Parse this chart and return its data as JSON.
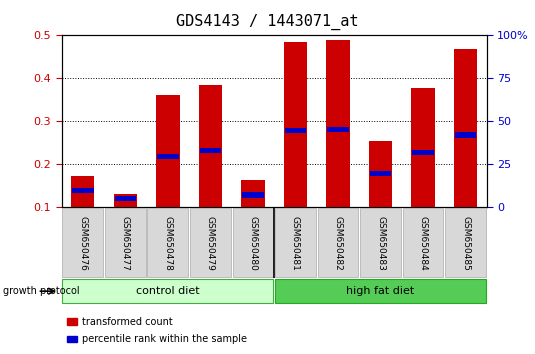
{
  "title": "GDS4143 / 1443071_at",
  "samples": [
    "GSM650476",
    "GSM650477",
    "GSM650478",
    "GSM650479",
    "GSM650480",
    "GSM650481",
    "GSM650482",
    "GSM650483",
    "GSM650484",
    "GSM650485"
  ],
  "transformed_count": [
    0.172,
    0.13,
    0.362,
    0.385,
    0.163,
    0.485,
    0.49,
    0.255,
    0.378,
    0.468
  ],
  "percentile_rank": [
    0.138,
    0.12,
    0.218,
    0.232,
    0.128,
    0.278,
    0.28,
    0.178,
    0.228,
    0.268
  ],
  "ylim_left": [
    0.1,
    0.5
  ],
  "ylim_right": [
    0,
    100
  ],
  "yticks_left": [
    0.1,
    0.2,
    0.3,
    0.4,
    0.5
  ],
  "yticks_right": [
    0,
    25,
    50,
    75,
    100
  ],
  "bar_color": "#cc0000",
  "percentile_color": "#0000cc",
  "bar_width": 0.55,
  "bar_bottom": 0.1,
  "growth_protocol_label": "growth protocol",
  "legend_items": [
    {
      "label": "transformed count",
      "color": "#cc0000"
    },
    {
      "label": "percentile rank within the sample",
      "color": "#0000cc"
    }
  ],
  "control_diet_bg": "#ccffcc",
  "high_fat_diet_bg": "#55cc55",
  "title_fontsize": 11,
  "tick_fontsize": 8
}
